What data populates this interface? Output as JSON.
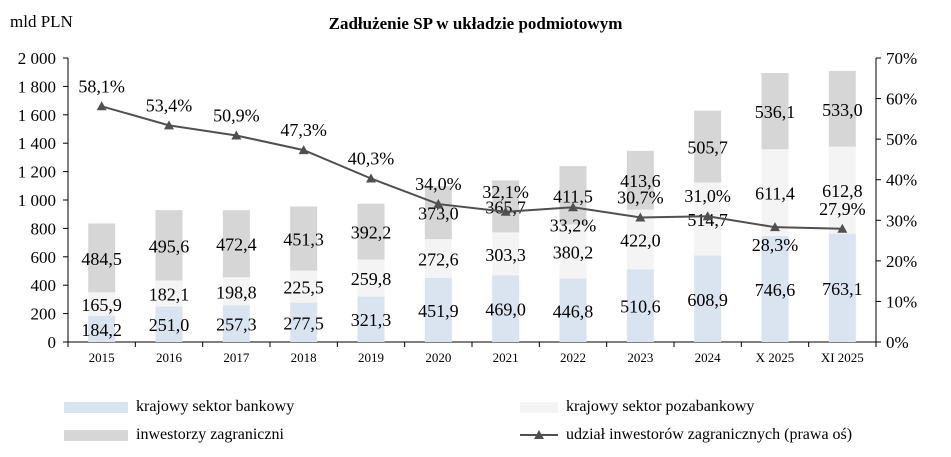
{
  "chart_data": {
    "type": "bar",
    "title": "Zadłużenie SP w układzie podmiotowym",
    "ylabel": "mld PLN",
    "y2label": "",
    "categories": [
      "2015",
      "2016",
      "2017",
      "2018",
      "2019",
      "2020",
      "2021",
      "2022",
      "2023",
      "2024",
      "X 2025",
      "XI 2025"
    ],
    "ylim": [
      0,
      2000
    ],
    "yticks": [
      "0",
      "200",
      "400",
      "600",
      "800",
      "1 000",
      "1 200",
      "1 400",
      "1 600",
      "1 800",
      "2 000"
    ],
    "y2lim": [
      0,
      70
    ],
    "y2ticks": [
      "0%",
      "10%",
      "20%",
      "30%",
      "40%",
      "50%",
      "60%",
      "70%"
    ],
    "grid": false,
    "legend_position": "bottom",
    "series": [
      {
        "name": "krajowy sektor bankowy",
        "type": "bar",
        "color": "#dae3f0",
        "values": [
          184.2,
          251.0,
          257.3,
          277.5,
          321.3,
          451.9,
          469.0,
          446.8,
          510.6,
          608.9,
          746.6,
          763.1
        ],
        "labels": [
          "184,2",
          "251,0",
          "257,3",
          "277,5",
          "321,3",
          "451,9",
          "469,0",
          "446,8",
          "510,6",
          "608,9",
          "746,6",
          "763,1"
        ]
      },
      {
        "name": "krajowy sektor pozabankowy",
        "type": "bar",
        "color": "#f4f4f4",
        "values": [
          165.9,
          182.1,
          198.8,
          225.5,
          259.8,
          272.6,
          303.3,
          380.2,
          422.0,
          514.7,
          611.4,
          612.8
        ],
        "labels": [
          "165,9",
          "182,1",
          "198,8",
          "225,5",
          "259,8",
          "272,6",
          "303,3",
          "380,2",
          "422,0",
          "514,7",
          "611,4",
          "612,8"
        ]
      },
      {
        "name": "inwestorzy zagraniczni",
        "type": "bar",
        "color": "#d6d6d6",
        "values": [
          484.5,
          495.6,
          472.4,
          451.3,
          392.2,
          373.0,
          365.7,
          411.5,
          413.6,
          505.7,
          536.1,
          533.0
        ],
        "labels": [
          "484,5",
          "495,6",
          "472,4",
          "451,3",
          "392,2",
          "373,0",
          "365,7",
          "411,5",
          "413,6",
          "505,7",
          "536,1",
          "533,0"
        ]
      },
      {
        "name": "udział inwestorów zagranicznych (prawa oś)",
        "type": "line",
        "axis": "right",
        "color": "#505050",
        "marker": "triangle",
        "values": [
          58.1,
          53.4,
          50.9,
          47.3,
          40.3,
          34.0,
          32.1,
          33.2,
          30.7,
          31.0,
          28.3,
          27.9
        ],
        "labels": [
          "58,1%",
          "53,4%",
          "50,9%",
          "47,3%",
          "40,3%",
          "34,0%",
          "32,1%",
          "33,2%",
          "30,7%",
          "31,0%",
          "28,3%",
          "27,9%"
        ]
      }
    ]
  }
}
